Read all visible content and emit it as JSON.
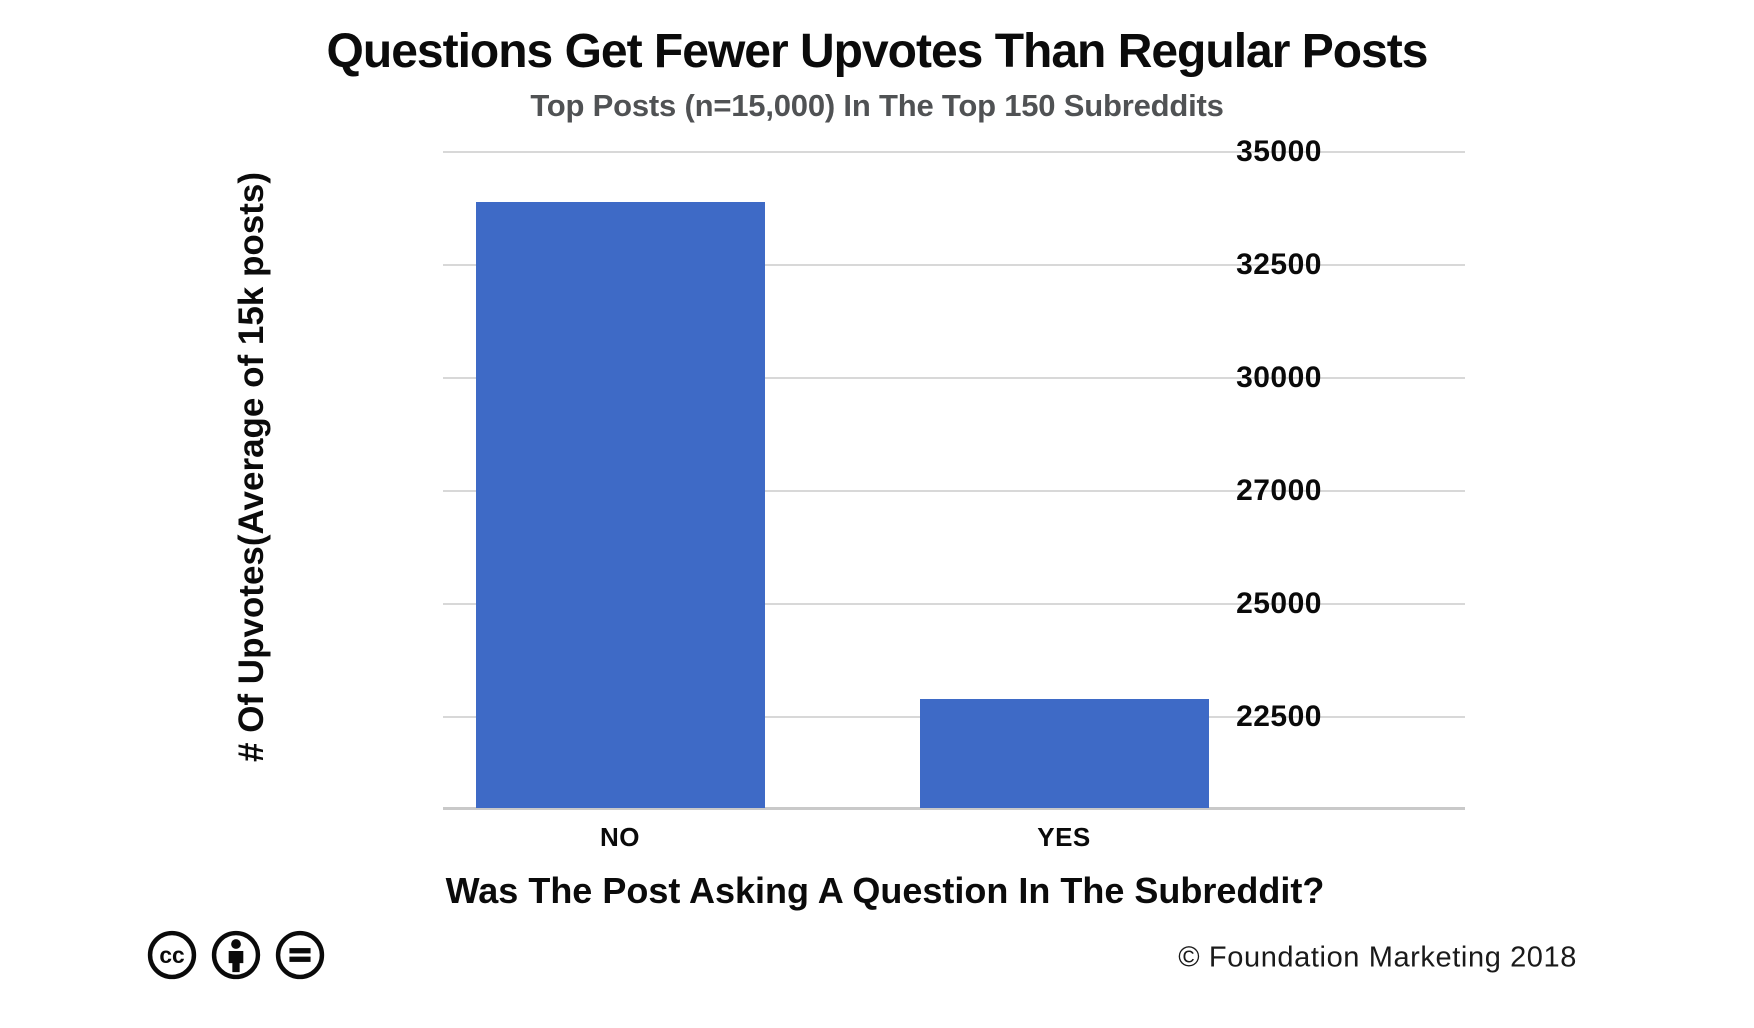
{
  "header": {
    "title": "Questions Get Fewer Upvotes Than Regular Posts",
    "subtitle": "Top Posts (n=15,000) In The Top 150 Subreddits"
  },
  "chart_data": {
    "type": "bar",
    "title": "Questions Get Fewer Upvotes Than Regular Posts",
    "subtitle": "Top Posts (n=15,000) In The Top 150 Subreddits",
    "categories": [
      "NO",
      "YES"
    ],
    "values": [
      33900,
      22900
    ],
    "xlabel": "Was The Post Asking A Question In The Subreddit?",
    "ylabel": "# Of Upvotes(Average of 15k posts)",
    "ytick_labels": [
      "35000",
      "32500",
      "30000",
      "27000",
      "25000",
      "22500"
    ],
    "ytick_values": [
      35000,
      32500,
      30000,
      27000,
      25000,
      22500
    ],
    "ylim": [
      20500,
      35000
    ],
    "grid": true,
    "legend": false,
    "bar_color": "#3E6AC6",
    "gridline_color": "#d8d8d8",
    "axis_line_color": "#c9c9c9"
  },
  "footer": {
    "license_icons": [
      "cc-icon",
      "cc-by-icon",
      "cc-nd-icon"
    ],
    "credit": "© Foundation Marketing 2018"
  }
}
